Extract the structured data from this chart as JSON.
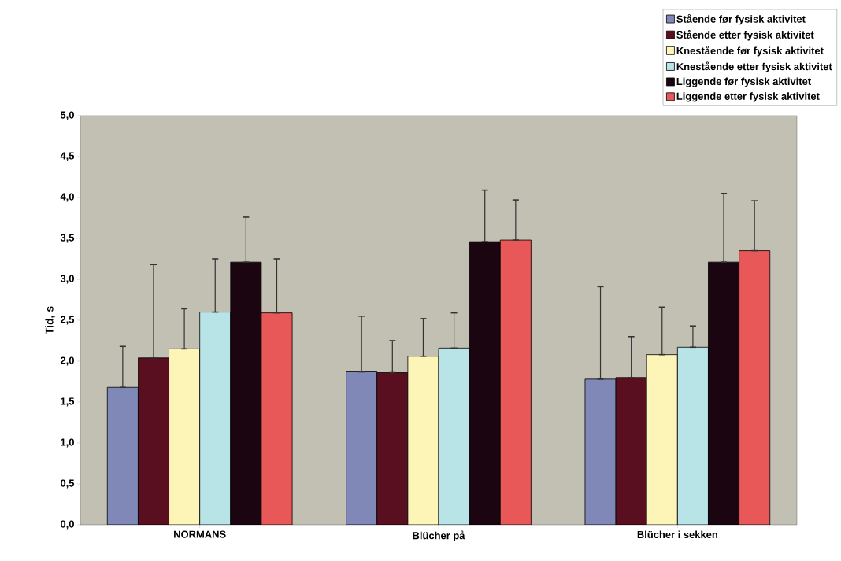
{
  "chart_data": {
    "type": "bar",
    "ylabel": "Tid, s",
    "categories": [
      "NORMANS",
      "Blücher på",
      "Blücher i sekken"
    ],
    "series": [
      {
        "name": "Stående før fysisk aktivitet",
        "color": "#8088b8",
        "values": [
          1.68,
          1.87,
          1.78
        ],
        "errors": [
          [
            1.68,
            2.18
          ],
          [
            1.87,
            2.55
          ],
          [
            1.78,
            2.91
          ]
        ]
      },
      {
        "name": "Stående etter fysisk aktivitet",
        "color": "#5a0f20",
        "values": [
          2.04,
          1.86,
          1.8
        ],
        "errors": [
          [
            2.04,
            3.18
          ],
          [
            1.86,
            2.25
          ],
          [
            1.8,
            2.3
          ]
        ]
      },
      {
        "name": "Knestående før fysisk aktivitet",
        "color": "#fdf5b8",
        "values": [
          2.15,
          2.06,
          2.08
        ],
        "errors": [
          [
            2.15,
            2.64
          ],
          [
            2.06,
            2.52
          ],
          [
            2.08,
            2.66
          ]
        ]
      },
      {
        "name": "Knestående etter fysisk aktivitet",
        "color": "#b8e4e8",
        "values": [
          2.6,
          2.16,
          2.17
        ],
        "errors": [
          [
            2.6,
            3.25
          ],
          [
            2.16,
            2.59
          ],
          [
            2.17,
            2.43
          ]
        ]
      },
      {
        "name": "Liggende før fysisk aktivitet",
        "color": "#1a0510",
        "values": [
          3.21,
          3.46,
          3.21
        ],
        "errors": [
          [
            3.21,
            3.76
          ],
          [
            3.46,
            4.09
          ],
          [
            3.21,
            4.05
          ]
        ]
      },
      {
        "name": "Liggende etter fysisk aktivitet",
        "color": "#e85858",
        "values": [
          2.59,
          3.48,
          3.35
        ],
        "errors": [
          [
            2.59,
            3.25
          ],
          [
            3.48,
            3.97
          ],
          [
            3.35,
            3.96
          ]
        ]
      }
    ],
    "ylim": [
      0,
      5
    ],
    "yticks": [
      {
        "value": 0,
        "label": "0,0"
      },
      {
        "value": 0.5,
        "label": "0,5"
      },
      {
        "value": 1,
        "label": "1,0"
      },
      {
        "value": 1.5,
        "label": "1,5"
      },
      {
        "value": 2,
        "label": "2,0"
      },
      {
        "value": 2.5,
        "label": "2,5"
      },
      {
        "value": 3,
        "label": "3,0"
      },
      {
        "value": 3.5,
        "label": "3,5"
      },
      {
        "value": 4,
        "label": "4,0"
      },
      {
        "value": 4.5,
        "label": "4,5"
      },
      {
        "value": 5,
        "label": "5,0"
      }
    ],
    "grid": false,
    "legend": "top right"
  }
}
